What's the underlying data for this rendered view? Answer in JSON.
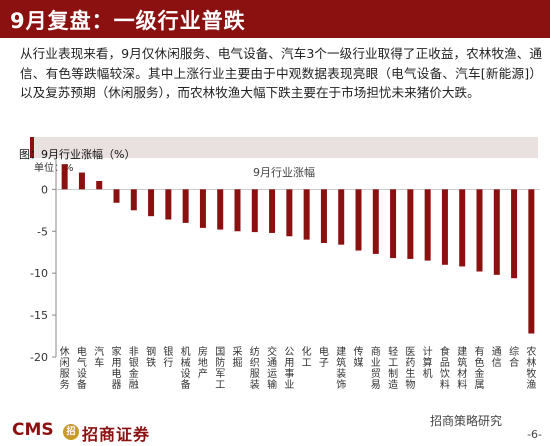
{
  "header": {
    "title": "9月复盘：一级行业普跌"
  },
  "summary": "从行业表现来看，9月仅休闲服务、电气设备、汽车3个一级行业取得了正收益，农林牧渔、通信、有色等跌幅较深。其中上涨行业主要由于中观数据表现亮眼（电气设备、汽车[新能源]）以及复苏预期（休闲服务），而农林牧渔大幅下跌主要在于市场担忧未来猪价大跌。",
  "chart_header": "图：9月行业涨幅（%）",
  "colors": {
    "brand": "#8b1111",
    "bar": "#8b1111",
    "header_bg": "#e9e0e0"
  },
  "chart_data": {
    "type": "bar",
    "title": "9月行业涨幅",
    "unit_label": "单位：%",
    "categories": [
      "休闲服务",
      "电气设备",
      "汽车",
      "家用电器",
      "非银金融",
      "钢铁",
      "银行",
      "机械设备",
      "房地产",
      "国防军工",
      "采掘",
      "纺织服装",
      "交通运输",
      "公用事业",
      "化工",
      "电子",
      "建筑装饰",
      "传媒",
      "商业贸易",
      "轻工制造",
      "医药生物",
      "计算机",
      "食品饮料",
      "建筑材料",
      "有色金属",
      "通信",
      "综合",
      "农林牧渔"
    ],
    "values": [
      3.0,
      2.0,
      1.0,
      -1.6,
      -2.5,
      -3.2,
      -3.6,
      -4.0,
      -4.6,
      -4.8,
      -5.0,
      -5.1,
      -5.2,
      -5.6,
      -6.0,
      -6.4,
      -6.6,
      -7.3,
      -7.7,
      -8.2,
      -8.3,
      -8.5,
      -9.0,
      -9.2,
      -9.8,
      -10.2,
      -10.6,
      -17.2
    ],
    "yticks": [
      0,
      -5,
      -10,
      -15,
      -20
    ],
    "ylim": [
      -20,
      3.5
    ],
    "grid": false,
    "legend": "none"
  },
  "footer": {
    "logo_text": "CMS",
    "logo_badge": "招",
    "logo_sub": "招商证券",
    "watermark": "招商策略研究",
    "page": "-6-"
  }
}
